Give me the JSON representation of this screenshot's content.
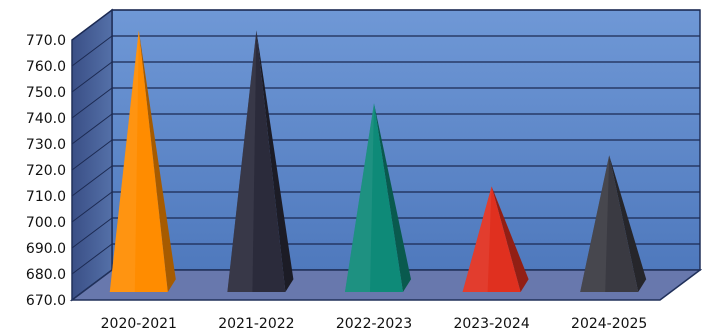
{
  "chart_data": {
    "type": "bar",
    "style": "3d-pyramid",
    "title": "",
    "xlabel": "",
    "ylabel": "",
    "ylim": [
      670,
      770
    ],
    "yticks": [
      670,
      680,
      690,
      700,
      710,
      720,
      730,
      740,
      750,
      760,
      770
    ],
    "ytick_labels": [
      "670.0",
      "680.0",
      "690.0",
      "700.0",
      "710.0",
      "720.0",
      "730.0",
      "740.0",
      "750.0",
      "760.0",
      "770.0"
    ],
    "categories": [
      "2020-2021",
      "2021-2022",
      "2022-2023",
      "2023-2024",
      "2024-2025"
    ],
    "values": [
      771,
      771,
      743,
      711,
      723
    ],
    "colors": [
      "#ff8c00",
      "#2b2b3b",
      "#0e8a78",
      "#e0301f",
      "#3a3a42"
    ],
    "grid": true,
    "legend": "none",
    "back_wall_color": "#5a86c9",
    "floor_color": "#6878ad"
  }
}
